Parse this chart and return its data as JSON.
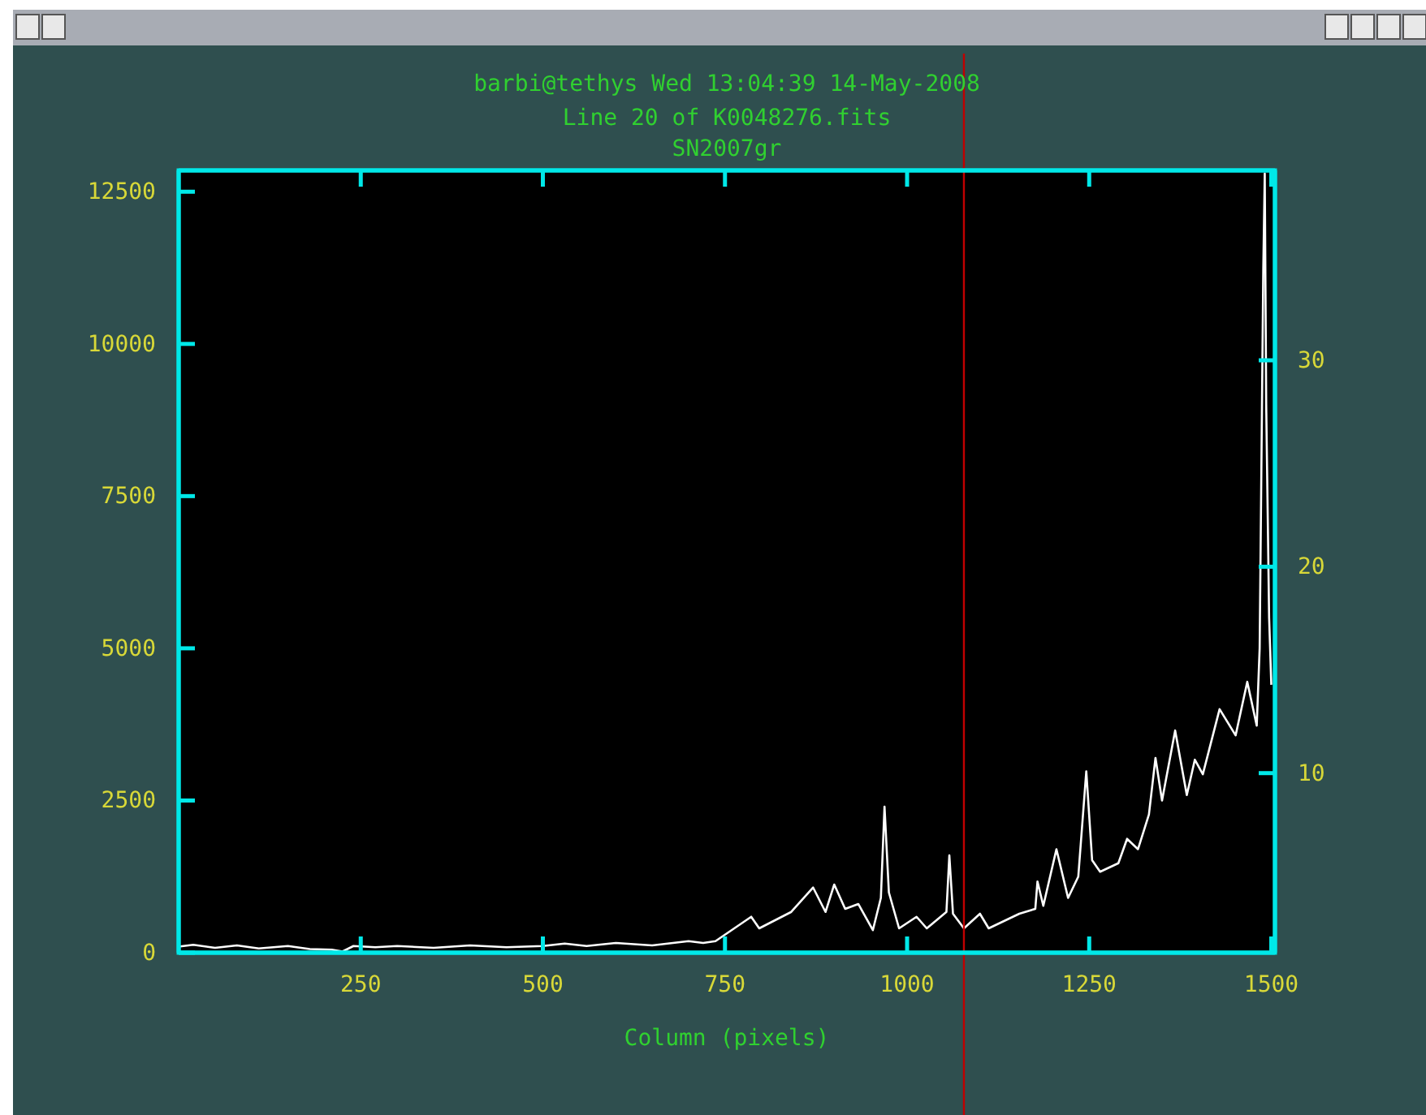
{
  "chart_data": {
    "type": "line",
    "title": "barbi@tethys Wed 13:04:39 14-May-2008",
    "subtitle": "Line 20 of K0048276.fits\nSN2007gr",
    "xlabel": "Column (pixels)",
    "xlim": [
      0,
      1505
    ],
    "xticks": [
      250,
      500,
      750,
      1000,
      1250,
      1500
    ],
    "ylim": [
      0,
      12850
    ],
    "yticks": [
      0,
      2500,
      5000,
      7500,
      10000,
      12500
    ],
    "y2lim": [
      1.3,
      39.2
    ],
    "y2ticks": [
      10,
      20,
      30
    ],
    "grid": false,
    "ref_lines": [
      {
        "axis": "x",
        "value": 1078,
        "color": "#c00000"
      }
    ],
    "series": [
      {
        "color": "#ffffff",
        "x": [
          0,
          20,
          50,
          80,
          110,
          150,
          180,
          210,
          225,
          240,
          270,
          300,
          350,
          400,
          450,
          500,
          530,
          560,
          600,
          650,
          700,
          720,
          737,
          786,
          797,
          841,
          871,
          888,
          900,
          915,
          933,
          953,
          964,
          969,
          975,
          989,
          1013,
          1027,
          1054,
          1058,
          1063,
          1078,
          1100,
          1112,
          1154,
          1176,
          1179,
          1187,
          1205,
          1221,
          1235,
          1246,
          1254,
          1265,
          1290,
          1302,
          1317,
          1332,
          1341,
          1350,
          1368,
          1384,
          1395,
          1406,
          1429,
          1451,
          1467,
          1480,
          1484,
          1489,
          1491,
          1493,
          1497,
          1500
        ],
        "values": [
          100,
          130,
          80,
          120,
          70,
          110,
          60,
          50,
          20,
          110,
          90,
          110,
          80,
          120,
          90,
          110,
          150,
          110,
          160,
          120,
          190,
          160,
          190,
          590,
          400,
          670,
          1070,
          670,
          1120,
          720,
          800,
          370,
          900,
          2400,
          990,
          400,
          590,
          400,
          670,
          1600,
          640,
          400,
          640,
          400,
          640,
          720,
          1170,
          770,
          1700,
          900,
          1250,
          2980,
          1520,
          1330,
          1470,
          1870,
          1700,
          2270,
          3200,
          2500,
          3650,
          2590,
          3170,
          2930,
          4000,
          3570,
          4450,
          3730,
          5000,
          11250,
          12800,
          9000,
          5500,
          4400
        ]
      }
    ]
  }
}
